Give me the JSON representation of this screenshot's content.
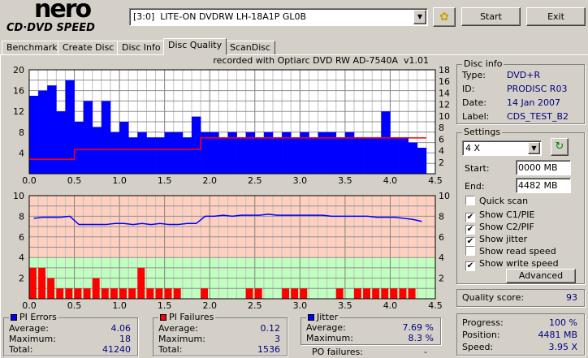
{
  "logo": {
    "brand": "nero",
    "product": "CD·DVD SPEED"
  },
  "toolbar": {
    "drive": "[3:0]  LITE-ON DVDRW LH-18A1P GL0B",
    "start": "Start",
    "exit": "Exit"
  },
  "tabs": [
    {
      "label": "Benchmark"
    },
    {
      "label": "Create Disc"
    },
    {
      "label": "Disc Info"
    },
    {
      "label": "Disc Quality",
      "active": true
    },
    {
      "label": "ScanDisc"
    }
  ],
  "recorded_with": "recorded with Optiarc DVD RW AD-7540A  v1.01",
  "disc_info": {
    "title": "Disc info",
    "type_label": "Type:",
    "type": "DVD+R",
    "id_label": "ID:",
    "id": "PRODISC R03",
    "date_label": "Date:",
    "date": "14 Jan 2007",
    "label_label": "Label:",
    "label": "CDS_TEST_B2"
  },
  "settings": {
    "title": "Settings",
    "speed": "4 X",
    "start_label": "Start:",
    "start": "0000 MB",
    "end_label": "End:",
    "end": "4482 MB",
    "checks": [
      {
        "label": "Quick scan",
        "checked": false
      },
      {
        "label": "Show C1/PIE",
        "checked": true
      },
      {
        "label": "Show C2/PIF",
        "checked": true
      },
      {
        "label": "Show jitter",
        "checked": true
      },
      {
        "label": "Show read speed",
        "checked": false
      },
      {
        "label": "Show write speed",
        "checked": true
      }
    ],
    "advanced": "Advanced"
  },
  "quality": {
    "label": "Quality score:",
    "value": "93"
  },
  "progress": {
    "progress_label": "Progress:",
    "progress": "100 %",
    "position_label": "Position:",
    "position": "4481 MB",
    "speed_label": "Speed:",
    "speed": "3.95 X"
  },
  "pi_errors": {
    "title": "PI Errors",
    "avg_label": "Average:",
    "avg": "4.06",
    "max_label": "Maximum:",
    "max": "18",
    "total_label": "Total:",
    "total": "41240",
    "color": "#0000ff"
  },
  "pi_failures": {
    "title": "PI Failures",
    "avg_label": "Average:",
    "avg": "0.12",
    "max_label": "Maximum:",
    "max": "3",
    "total_label": "Total:",
    "total": "1536",
    "color": "#ff0000"
  },
  "jitter": {
    "title": "Jitter",
    "avg_label": "Average:",
    "avg": "7.69 %",
    "max_label": "Maximum:",
    "max": "8.3 %",
    "po_label": "PO failures:",
    "po": "-",
    "color": "#0000ff"
  },
  "chart_data": [
    {
      "type": "bar",
      "name": "pie-chart",
      "xlim": [
        0,
        4.5
      ],
      "ylim": [
        0,
        20
      ],
      "y2lim": [
        0,
        18
      ],
      "xticks": [
        "0.0",
        "0.5",
        "1.0",
        "1.5",
        "2.0",
        "2.5",
        "3.0",
        "3.5",
        "4.0",
        "4.5"
      ],
      "yticks": [
        "4",
        "8",
        "12",
        "16",
        "20"
      ],
      "y2ticks": [
        "2",
        "4",
        "6",
        "8",
        "10",
        "12",
        "14",
        "16",
        "18"
      ],
      "x_step": 0.1,
      "pie": [
        15,
        16,
        17,
        12,
        18,
        10,
        14,
        9,
        14,
        8,
        10,
        7,
        8,
        7,
        7,
        8,
        8,
        7,
        11,
        8,
        8,
        7,
        8,
        7,
        8,
        7,
        8,
        7,
        8,
        7,
        8,
        7,
        8,
        8,
        7,
        8,
        7,
        7,
        7,
        12,
        7,
        7,
        6,
        5
      ],
      "write_speed": [
        2.5,
        2.5,
        2.5,
        2.5,
        2.5,
        4.2,
        4.2,
        4.2,
        4.2,
        4.2,
        4.2,
        4.2,
        4.2,
        4.2,
        4.2,
        4.2,
        4.2,
        4.2,
        4.2,
        6.2,
        6.2,
        6.2,
        6.2,
        6.2,
        6.2,
        6.2,
        6.2,
        6.2,
        6.2,
        6.2,
        6.2,
        6.2,
        6.2,
        6.2,
        6.2,
        6.2,
        6.2,
        6.2,
        6.2,
        6.2,
        6.2,
        6.2,
        6.2,
        6.2
      ],
      "grid": true
    },
    {
      "type": "bar",
      "name": "pif-jitter-chart",
      "xlim": [
        0,
        4.5
      ],
      "ylim": [
        0,
        10
      ],
      "y2lim": [
        0,
        10
      ],
      "xticks": [
        "0.0",
        "0.5",
        "1.0",
        "1.5",
        "2.0",
        "2.5",
        "3.0",
        "3.5",
        "4.0",
        "4.5"
      ],
      "yticks": [
        "2",
        "4",
        "6",
        "8",
        "10"
      ],
      "y2ticks": [
        "2",
        "4",
        "6",
        "8",
        "10"
      ],
      "x_step": 0.1,
      "pif": [
        3,
        3,
        2,
        1,
        1,
        1,
        1,
        2,
        1,
        1,
        1,
        1,
        3,
        1,
        1,
        1,
        1,
        0,
        0,
        1,
        0,
        0,
        0,
        0,
        1,
        1,
        0,
        0,
        1,
        1,
        1,
        0,
        0,
        0,
        1,
        0,
        1,
        1,
        1,
        1,
        1,
        1,
        1,
        0
      ],
      "jitter": [
        7.8,
        7.9,
        7.9,
        7.9,
        8.0,
        7.2,
        7.2,
        7.2,
        7.2,
        7.3,
        7.3,
        7.2,
        7.3,
        7.2,
        7.3,
        7.2,
        7.2,
        7.3,
        7.3,
        8.0,
        8.0,
        8.1,
        8.0,
        8.1,
        8.1,
        8.1,
        8.2,
        8.1,
        8.1,
        8.1,
        8.1,
        8.1,
        8.1,
        8.0,
        8.0,
        8.0,
        8.0,
        8.0,
        7.9,
        7.9,
        7.9,
        7.8,
        7.7,
        7.5
      ],
      "bands": [
        {
          "from": 0,
          "to": 4,
          "color": "#c0ffc0"
        },
        {
          "from": 4,
          "to": 10,
          "color": "#ffd0c0"
        }
      ],
      "grid": true
    }
  ]
}
